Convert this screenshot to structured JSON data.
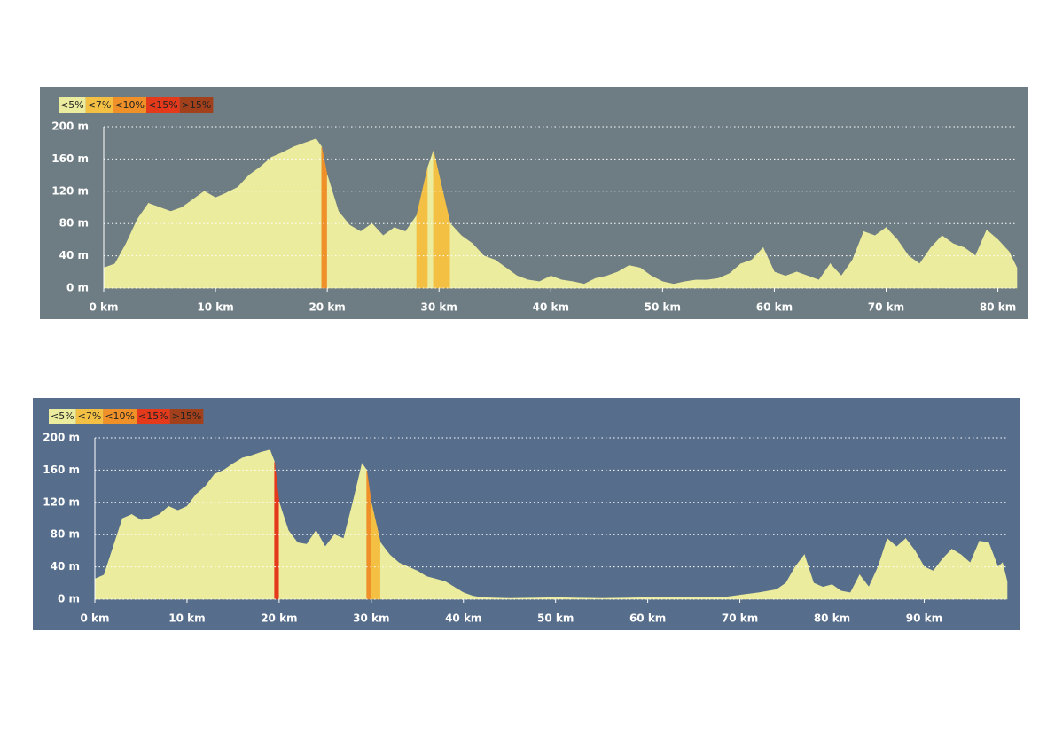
{
  "chart_data": [
    {
      "type": "area",
      "background": "#6e7d83",
      "fill_outline": "#f2f2b8",
      "legend": [
        {
          "label": "<5%",
          "color": "#ecec9e",
          "max": 5
        },
        {
          "label": "<7%",
          "color": "#f3c043",
          "max": 7
        },
        {
          "label": "<10%",
          "color": "#ef9028",
          "max": 10
        },
        {
          "label": "<15%",
          "color": "#e5391b",
          "max": 15
        },
        {
          "label": ">15%",
          "color": "#a3401c",
          "min": 15
        }
      ],
      "x": [
        0,
        1,
        2,
        3,
        4,
        5,
        6,
        7,
        8,
        9,
        10,
        11,
        12,
        13,
        14,
        15,
        16,
        17,
        18,
        19,
        19.5,
        20,
        21,
        22,
        23,
        24,
        25,
        26,
        27,
        28,
        29,
        29.5,
        30,
        31,
        32,
        33,
        34,
        35,
        36,
        37,
        38,
        39,
        40,
        41,
        42,
        43,
        44,
        45,
        46,
        47,
        48,
        49,
        50,
        51,
        52,
        53,
        54,
        55,
        56,
        57,
        58,
        59,
        60,
        61,
        62,
        63,
        64,
        65,
        66,
        67,
        68,
        69,
        70,
        71,
        72,
        73,
        74,
        75,
        76,
        77,
        78,
        79,
        80,
        81,
        81.7
      ],
      "values": [
        25,
        30,
        55,
        85,
        105,
        100,
        95,
        100,
        110,
        120,
        112,
        118,
        125,
        140,
        150,
        162,
        168,
        175,
        180,
        185,
        175,
        140,
        95,
        78,
        70,
        80,
        65,
        75,
        70,
        90,
        150,
        170,
        140,
        80,
        65,
        55,
        40,
        35,
        25,
        15,
        10,
        8,
        15,
        10,
        8,
        5,
        12,
        15,
        20,
        28,
        25,
        15,
        8,
        5,
        8,
        10,
        10,
        12,
        18,
        30,
        35,
        50,
        20,
        15,
        20,
        15,
        10,
        30,
        15,
        35,
        70,
        65,
        75,
        60,
        40,
        30,
        50,
        65,
        55,
        50,
        40,
        72,
        60,
        45,
        25
      ],
      "xlim": [
        0,
        81.7
      ],
      "ylim": [
        0,
        200
      ],
      "xticks": [
        {
          "value": 0,
          "label": "0 km"
        },
        {
          "value": 10,
          "label": "10 km"
        },
        {
          "value": 20,
          "label": "20 km"
        },
        {
          "value": 30,
          "label": "30 km"
        },
        {
          "value": 40,
          "label": "40 km"
        },
        {
          "value": 50,
          "label": "50 km"
        },
        {
          "value": 60,
          "label": "60 km"
        },
        {
          "value": 70,
          "label": "70 km"
        },
        {
          "value": 80,
          "label": "80 km"
        }
      ],
      "yticks": [
        {
          "value": 0,
          "label": "0 m"
        },
        {
          "value": 40,
          "label": "40 m"
        },
        {
          "value": 80,
          "label": "80 m"
        },
        {
          "value": 120,
          "label": "120 m"
        },
        {
          "value": 160,
          "label": "160 m"
        },
        {
          "value": 200,
          "label": "200 m"
        }
      ],
      "grid": true
    },
    {
      "type": "area",
      "background": "#566d8b",
      "fill_outline": "#f2f2b8",
      "legend": [
        {
          "label": "<5%",
          "color": "#ecec9e",
          "max": 5
        },
        {
          "label": "<7%",
          "color": "#f3c043",
          "max": 7
        },
        {
          "label": "<10%",
          "color": "#ef9028",
          "max": 10
        },
        {
          "label": "<15%",
          "color": "#e5391b",
          "max": 15
        },
        {
          "label": ">15%",
          "color": "#a3401c",
          "min": 15
        }
      ],
      "x": [
        0,
        1,
        2,
        3,
        4,
        5,
        6,
        7,
        8,
        9,
        10,
        11,
        12,
        13,
        14,
        15,
        16,
        17,
        18,
        19,
        19.5,
        20,
        21,
        22,
        23,
        24,
        25,
        26,
        27,
        28,
        29,
        29.5,
        30,
        31,
        32,
        33,
        34,
        35,
        36,
        37,
        38,
        39,
        40,
        41,
        42,
        45,
        50,
        55,
        60,
        65,
        68,
        70,
        72,
        74,
        75,
        76,
        77,
        78,
        79,
        80,
        81,
        82,
        83,
        84,
        85,
        86,
        87,
        88,
        89,
        90,
        91,
        92,
        93,
        94,
        95,
        96,
        97,
        98,
        98.5,
        99
      ],
      "values": [
        25,
        30,
        65,
        100,
        105,
        98,
        100,
        105,
        115,
        110,
        115,
        130,
        140,
        155,
        160,
        168,
        175,
        178,
        182,
        185,
        170,
        120,
        85,
        70,
        68,
        85,
        65,
        80,
        75,
        120,
        168,
        160,
        120,
        70,
        55,
        45,
        40,
        35,
        28,
        25,
        22,
        15,
        8,
        4,
        2,
        1,
        2,
        1,
        2,
        3,
        2,
        5,
        8,
        12,
        20,
        40,
        55,
        20,
        15,
        18,
        10,
        8,
        30,
        15,
        40,
        75,
        65,
        75,
        60,
        40,
        35,
        50,
        62,
        55,
        45,
        72,
        70,
        40,
        45,
        22
      ],
      "xlim": [
        0,
        99
      ],
      "ylim": [
        0,
        200
      ],
      "xticks": [
        {
          "value": 0,
          "label": "0 km"
        },
        {
          "value": 10,
          "label": "10 km"
        },
        {
          "value": 20,
          "label": "20 km"
        },
        {
          "value": 30,
          "label": "30 km"
        },
        {
          "value": 40,
          "label": "40 km"
        },
        {
          "value": 50,
          "label": "50 km"
        },
        {
          "value": 60,
          "label": "60 km"
        },
        {
          "value": 70,
          "label": "70 km"
        },
        {
          "value": 80,
          "label": "80 km"
        },
        {
          "value": 90,
          "label": "90 km"
        }
      ],
      "yticks": [
        {
          "value": 0,
          "label": "0 m"
        },
        {
          "value": 40,
          "label": "40 m"
        },
        {
          "value": 80,
          "label": "80 m"
        },
        {
          "value": 120,
          "label": "120 m"
        },
        {
          "value": 160,
          "label": "160 m"
        },
        {
          "value": 200,
          "label": "200 m"
        }
      ],
      "grid": true
    }
  ]
}
